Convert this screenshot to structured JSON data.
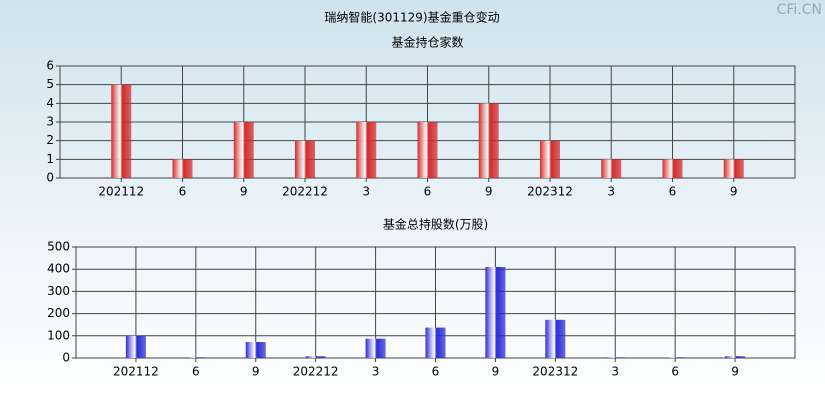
{
  "title": "瑞纳智能(301129)基金重仓变动",
  "watermark": "CFi.CN",
  "chart_data": [
    {
      "type": "bar",
      "title": "基金持仓家数",
      "categories": [
        "202112",
        "6",
        "9",
        "202212",
        "3",
        "6",
        "9",
        "202312",
        "3",
        "6",
        "9"
      ],
      "values": [
        5,
        1,
        3,
        2,
        3,
        3,
        4,
        2,
        1,
        1,
        1
      ],
      "color": "#d42a2a",
      "ylim": [
        0,
        6
      ],
      "yticks": [
        0,
        1,
        2,
        3,
        4,
        5,
        6
      ],
      "grid": true
    },
    {
      "type": "bar",
      "title": "基金总持股数(万股)",
      "categories": [
        "202112",
        "6",
        "9",
        "202212",
        "3",
        "6",
        "9",
        "202312",
        "3",
        "6",
        "9"
      ],
      "values": [
        100,
        3,
        72,
        8,
        87,
        137,
        410,
        172,
        3,
        3,
        8
      ],
      "color": "#2a2ad4",
      "ylim": [
        0,
        500
      ],
      "yticks": [
        0,
        100,
        200,
        300,
        400,
        500
      ],
      "grid": true
    }
  ]
}
